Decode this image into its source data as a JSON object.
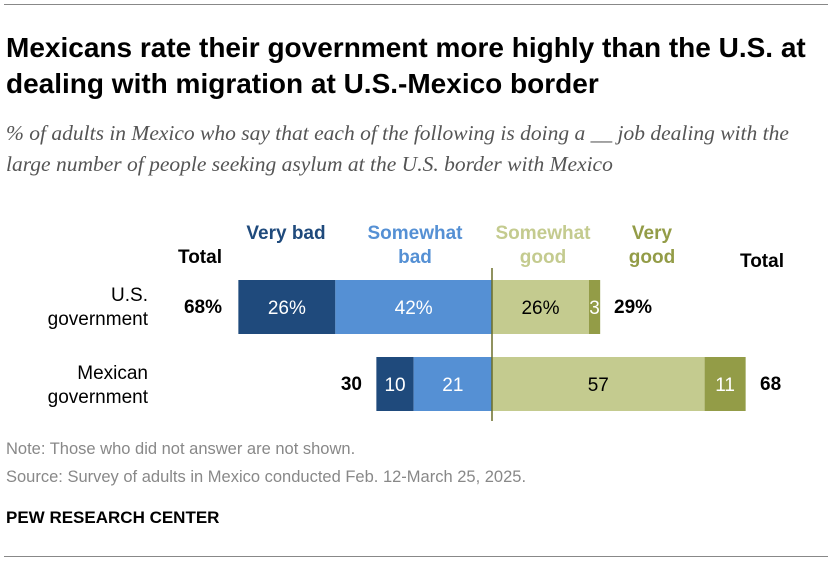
{
  "title": "Mexicans rate their government more highly than the U.S. at dealing with migration at U.S.-Mexico border",
  "subtitle": "% of adults in Mexico who say that each of the following is doing a __ job dealing with the large number of people seeking asylum at the U.S. border with Mexico",
  "note": "Note: Those who did not answer are not shown.",
  "source": "Source: Survey of adults in Mexico conducted Feb. 12-March 25, 2025.",
  "brand": "PEW RESEARCH CENTER",
  "chart_data": {
    "type": "bar",
    "subtype": "diverging-stacked",
    "headers": {
      "total_left": "Total",
      "very_bad": "Very bad",
      "somewhat_bad": "Somewhat bad",
      "somewhat_good": "Somewhat good",
      "very_good": "Very good",
      "total_right": "Total"
    },
    "categories": [
      "U.S. government",
      "Mexican government"
    ],
    "series": [
      {
        "name": "Very bad",
        "color": "#1f4a7c",
        "values": [
          26,
          10
        ],
        "labels": [
          "26%",
          "10"
        ]
      },
      {
        "name": "Somewhat bad",
        "color": "#5590d4",
        "values": [
          42,
          21
        ],
        "labels": [
          "42%",
          "21"
        ]
      },
      {
        "name": "Somewhat good",
        "color": "#c4cb8f",
        "values": [
          26,
          57
        ],
        "labels": [
          "26%",
          "57"
        ]
      },
      {
        "name": "Very good",
        "color": "#939c47",
        "values": [
          3,
          11
        ],
        "labels": [
          "3",
          "11"
        ]
      }
    ],
    "total_bad": [
      "68%",
      "30"
    ],
    "total_good": [
      "29%",
      "68"
    ]
  }
}
